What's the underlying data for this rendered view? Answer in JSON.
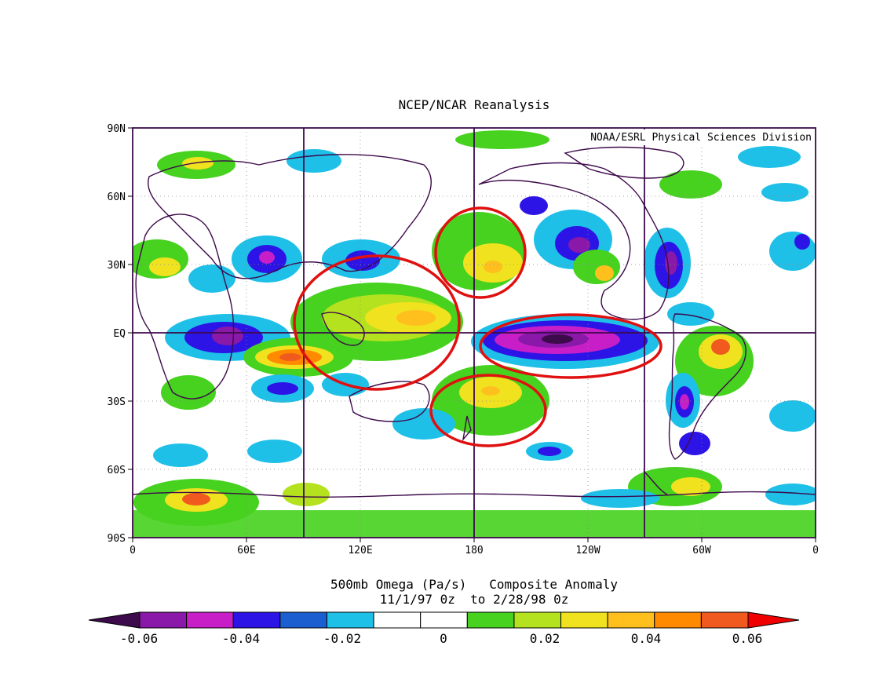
{
  "title": "NCEP/NCAR Reanalysis",
  "credit": "NOAA/ESRL Physical Sciences Division",
  "caption": {
    "line1": "500mb Omega (Pa/s)   Composite Anomaly",
    "line2": "11/1/97 0z  to 2/28/98 0z"
  },
  "y_axis": {
    "ticks": [
      "90N",
      "60N",
      "30N",
      "EQ",
      "30S",
      "60S",
      "90S"
    ]
  },
  "x_axis": {
    "ticks": [
      "0",
      "60E",
      "120E",
      "180",
      "120W",
      "60W",
      "0"
    ]
  },
  "colorbar": {
    "labels": [
      "-0.06",
      "-0.04",
      "-0.02",
      "0",
      "0.02",
      "0.04",
      "0.06"
    ],
    "colors": [
      "#3d0a4b",
      "#8a18a8",
      "#c81ec8",
      "#2d14e6",
      "#1a5ed0",
      "#1ec0e8",
      "#ffffff",
      "#ffffff",
      "#46d21e",
      "#b4e21e",
      "#f0e21e",
      "#ffc01e",
      "#ff8a00",
      "#f05a1e",
      "#f00000"
    ]
  },
  "annotations": [
    {
      "name": "western-pacific-circle",
      "color": "#e01010"
    },
    {
      "name": "north-pacific-circle",
      "color": "#e01010"
    },
    {
      "name": "equatorial-pacific-circle",
      "color": "#e01010"
    },
    {
      "name": "south-pacific-circle",
      "color": "#e01010"
    }
  ]
}
